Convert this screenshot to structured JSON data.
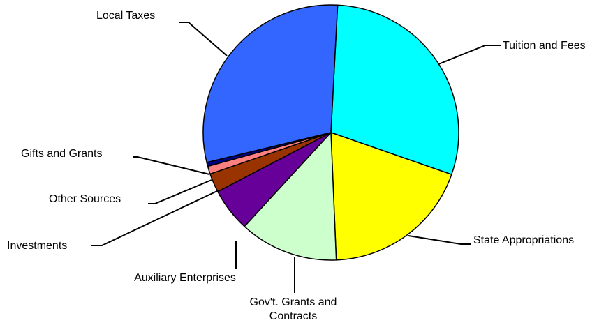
{
  "chart_data": {
    "type": "pie",
    "title": "",
    "legend": "none",
    "slices": [
      {
        "label": "Tuition and Fees",
        "value": 29.5,
        "color": "#00FFFF"
      },
      {
        "label": "State Appropriations",
        "value": 19.0,
        "color": "#FFFF00"
      },
      {
        "label": "Gov't. Grants and Contracts",
        "lines": [
          "Gov't. Grants and",
          "Contracts"
        ],
        "value": 12.5,
        "color": "#CCFFCC"
      },
      {
        "label": "Auxiliary Enterprises",
        "value": 5.5,
        "color": "#660099"
      },
      {
        "label": "Investments",
        "value": 2.4,
        "color": "#993300"
      },
      {
        "label": "Other Sources",
        "value": 1.0,
        "color": "#FF8080"
      },
      {
        "label": "Gifts and Grants",
        "value": 0.5,
        "color": "#000080"
      },
      {
        "label": "Local Taxes",
        "value": 29.6,
        "color": "#3366FF"
      }
    ]
  }
}
